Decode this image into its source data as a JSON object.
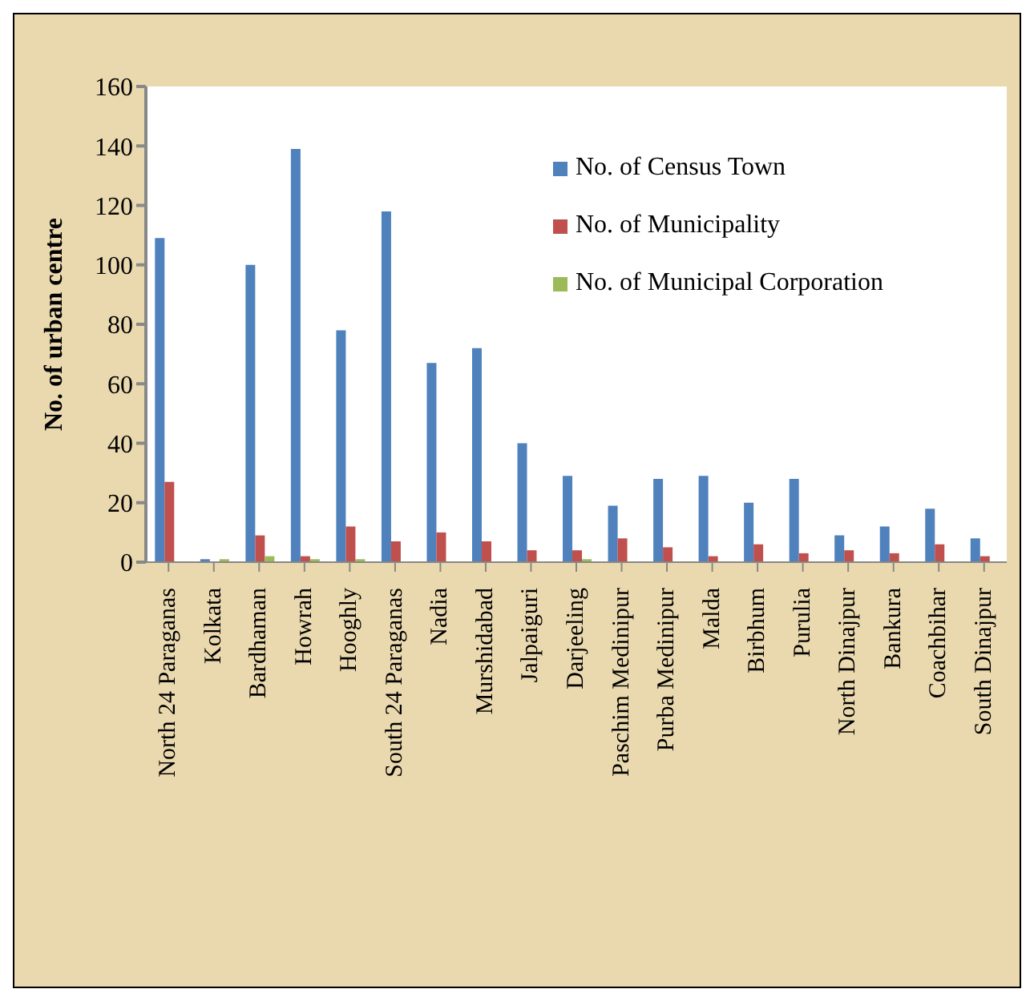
{
  "chart_data": {
    "type": "bar",
    "ylabel": "No. of urban centre",
    "categories": [
      "North 24 Paraganas",
      "Kolkata",
      "Bardhaman",
      "Howrah",
      "Hooghly",
      "South 24 Paraganas",
      "Nadia",
      "Murshidabad",
      "Jalpaiguri",
      "Darjeeling",
      "Paschim Medinipur",
      "Purba Medinipur",
      "Malda",
      "Birbhum",
      "Purulia",
      "North Dinajpur",
      "Bankura",
      "Coachbihar",
      "South Dinajpur"
    ],
    "series": [
      {
        "name": "No. of Census Town",
        "color": "#4f81bd",
        "values": [
          109,
          1,
          100,
          139,
          78,
          118,
          67,
          72,
          40,
          29,
          19,
          28,
          29,
          20,
          28,
          9,
          12,
          18,
          8
        ]
      },
      {
        "name": "No. of Municipality",
        "color": "#c0504d",
        "values": [
          27,
          0,
          9,
          2,
          12,
          7,
          10,
          7,
          4,
          4,
          8,
          5,
          2,
          6,
          3,
          4,
          3,
          6,
          2
        ]
      },
      {
        "name": "No. of Municipal Corporation",
        "color": "#9bbb59",
        "values": [
          0,
          1,
          2,
          1,
          1,
          0,
          0,
          0,
          0,
          1,
          0,
          0,
          0,
          0,
          0,
          0,
          0,
          0,
          0
        ]
      }
    ],
    "ylim": [
      0,
      160
    ],
    "yticks": [
      0,
      20,
      40,
      60,
      80,
      100,
      120,
      140,
      160
    ],
    "grid": false,
    "legend": "top right"
  }
}
